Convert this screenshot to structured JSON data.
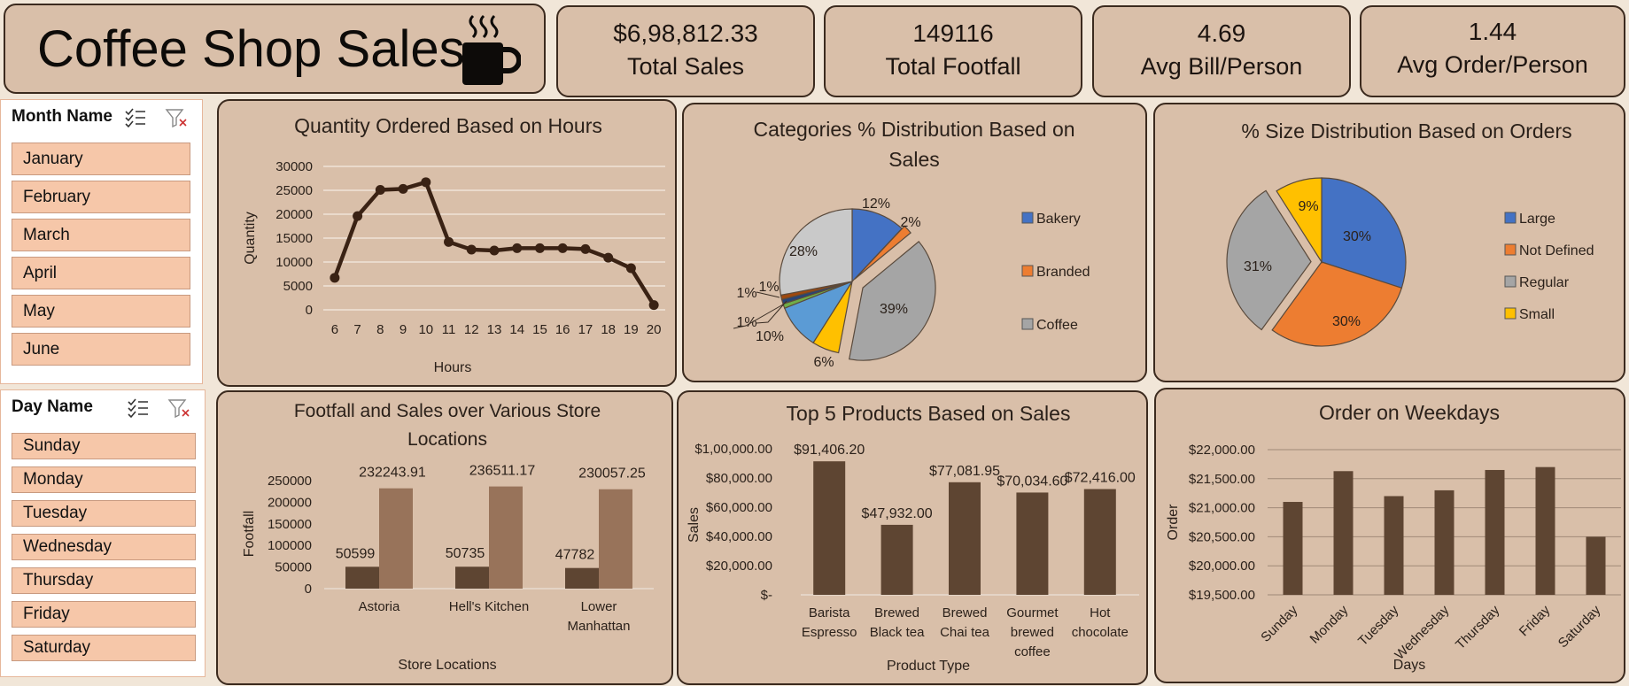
{
  "header": {
    "title": "Coffee Shop Sales",
    "icon": "coffee-cup-icon"
  },
  "kpis": [
    {
      "value": "$6,98,812.33",
      "label": "Total Sales"
    },
    {
      "value": "149116",
      "label": "Total Footfall"
    },
    {
      "value": "4.69",
      "label": "Avg Bill/Person"
    },
    {
      "value": "1.44",
      "label": "Avg Order/Person"
    }
  ],
  "month_slicer": {
    "title": "Month Name",
    "items": [
      "January",
      "February",
      "March",
      "April",
      "May",
      "June"
    ]
  },
  "day_slicer": {
    "title": "Day Name",
    "items": [
      "Sunday",
      "Monday",
      "Tuesday",
      "Wednesday",
      "Thursday",
      "Friday",
      "Saturday"
    ]
  },
  "colors": {
    "panel_bg": "#d9bfa9",
    "page_bg": "#f1e6d8",
    "border": "#3b2a1e",
    "line": "#3a2214",
    "bar_dark": "#5e4532",
    "bar_light": "#98735a",
    "slicer_item": "#f6c7a9"
  },
  "chart_data": [
    {
      "id": "hours",
      "type": "line",
      "title": "Quantity Ordered Based on Hours",
      "xlabel": "Hours",
      "ylabel": "Quantity",
      "x": [
        6,
        7,
        8,
        9,
        10,
        11,
        12,
        13,
        14,
        15,
        16,
        17,
        18,
        19,
        20
      ],
      "values": [
        6700,
        19600,
        25100,
        25300,
        26700,
        14200,
        12600,
        12400,
        12900,
        12900,
        12900,
        12700,
        10900,
        8700,
        1000
      ],
      "yticks": [
        "30000",
        "25000",
        "20000",
        "15000",
        "10000",
        "5000",
        "0"
      ],
      "ylim": [
        0,
        30000
      ],
      "grid": true
    },
    {
      "id": "categories",
      "type": "pie",
      "title": "Categories % Distribution Based on Sales",
      "slices": [
        {
          "name": "Bakery",
          "value": 12,
          "label": "12%",
          "color": "#4472c4"
        },
        {
          "name": "Branded",
          "value": 2,
          "label": "2%",
          "color": "#ed7d31"
        },
        {
          "name": "Coffee",
          "value": 39,
          "label": "39%",
          "color": "#a5a5a5"
        },
        {
          "name": "",
          "value": 6,
          "label": "6%",
          "color": "#ffc000"
        },
        {
          "name": "",
          "value": 10,
          "label": "10%",
          "color": "#5b9bd5"
        },
        {
          "name": "",
          "value": 1,
          "label": "1%",
          "color": "#70ad47"
        },
        {
          "name": "",
          "value": 1,
          "label": "1%",
          "color": "#264478"
        },
        {
          "name": "",
          "value": 1,
          "label": "1%",
          "color": "#9e480e"
        },
        {
          "name": "",
          "value": 28,
          "label": "28%",
          "color": "#c9c9c9"
        }
      ],
      "legend": [
        "Bakery",
        "Branded",
        "Coffee"
      ],
      "legend_position": "right"
    },
    {
      "id": "sizes",
      "type": "pie",
      "title": "% Size Distribution Based on Orders",
      "slices": [
        {
          "name": "Large",
          "value": 30,
          "label": "30%",
          "color": "#4472c4"
        },
        {
          "name": "Not Defined",
          "value": 30,
          "label": "30%",
          "color": "#ed7d31"
        },
        {
          "name": "Regular",
          "value": 31,
          "label": "31%",
          "color": "#a5a5a5"
        },
        {
          "name": "Small",
          "value": 9,
          "label": "9%",
          "color": "#ffc000"
        }
      ],
      "legend_position": "right"
    },
    {
      "id": "stores",
      "type": "bar",
      "title": "Footfall and Sales over Various Store Locations",
      "xlabel": "Store Locations",
      "ylabel": "Footfall",
      "categories": [
        "Astoria",
        "Hell's Kitchen",
        "Lower Manhattan"
      ],
      "series": [
        {
          "values": [
            50599,
            50735,
            47782
          ],
          "labels": [
            "50599",
            "50735",
            "47782"
          ]
        },
        {
          "values": [
            232243.91,
            236511.17,
            230057.25
          ],
          "labels": [
            "232243.91",
            "236511.17",
            "230057.25"
          ]
        }
      ],
      "yticks": [
        "250000",
        "200000",
        "150000",
        "100000",
        "50000",
        "0"
      ],
      "ylim": [
        0,
        250000
      ]
    },
    {
      "id": "products",
      "type": "bar",
      "title": "Top 5 Products Based on Sales",
      "xlabel": "Product Type",
      "ylabel": "Sales",
      "categories": [
        "Barista Espresso",
        "Brewed Black tea",
        "Brewed Chai tea",
        "Gourmet brewed coffee",
        "Hot chocolate"
      ],
      "values": [
        91406.2,
        47932.0,
        77081.95,
        70034.6,
        72416.0
      ],
      "labels": [
        "$91,406.20",
        "$47,932.00",
        "$77,081.95",
        "$70,034.60",
        "$72,416.00"
      ],
      "yticks": [
        "$1,00,000.00",
        "$80,000.00",
        "$60,000.00",
        "$40,000.00",
        "$20,000.00",
        "$-"
      ],
      "ylim": [
        0,
        100000
      ]
    },
    {
      "id": "weekdays",
      "type": "bar",
      "title": "Order on Weekdays",
      "xlabel": "Days",
      "ylabel": "Order",
      "categories": [
        "Sunday",
        "Monday",
        "Tuesday",
        "Wednesday",
        "Thursday",
        "Friday",
        "Saturday"
      ],
      "values": [
        21100,
        21630,
        21200,
        21300,
        21650,
        21700,
        20500
      ],
      "yticks": [
        "$22,000.00",
        "$21,500.00",
        "$21,000.00",
        "$20,500.00",
        "$20,000.00",
        "$19,500.00"
      ],
      "ylim": [
        19500,
        22000
      ],
      "grid": true
    }
  ]
}
